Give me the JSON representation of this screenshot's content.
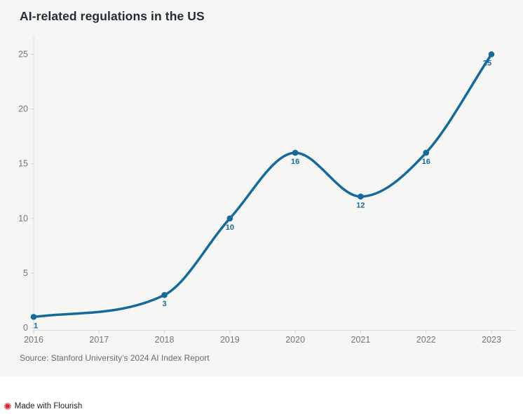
{
  "header": {
    "title": "AI-related regulations in the US"
  },
  "chart_data": {
    "type": "line",
    "title": "AI-related regulations in the US",
    "categories": [
      "2016",
      "2017",
      "2018",
      "2019",
      "2020",
      "2021",
      "2022",
      "2023"
    ],
    "series": [
      {
        "values": [
          1,
          null,
          3,
          10,
          16,
          12,
          16,
          25
        ]
      }
    ],
    "data_labels": [
      1,
      3,
      10,
      16,
      12,
      16,
      25
    ],
    "xlabel": "",
    "ylabel": "",
    "ylim": [
      0,
      25
    ],
    "yticks": [
      0,
      5,
      10,
      15,
      20,
      25
    ],
    "grid": false,
    "legend": "none",
    "curve": "smooth",
    "markers": true,
    "line_color": "#156a9c",
    "card_background": "#f6f6f4"
  },
  "footer": {
    "source": "Source: Stanford University’s 2024 AI Index Report"
  },
  "attribution": {
    "label": "Made with Flourish",
    "icon_glyph": "✺",
    "icon_color": "#d6262c"
  }
}
